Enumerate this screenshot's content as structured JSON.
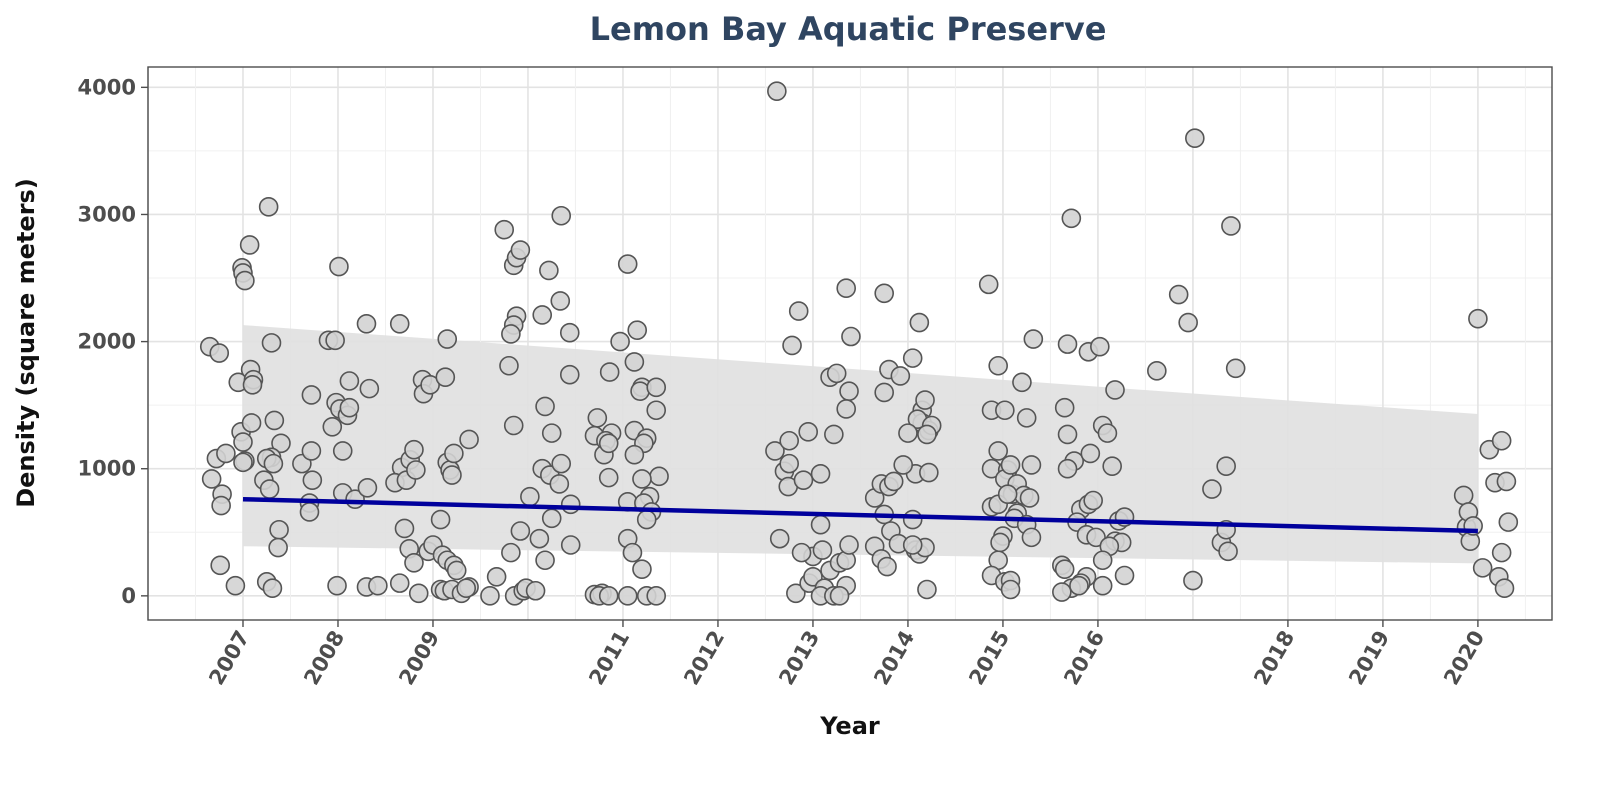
{
  "chart_data": {
    "type": "scatter",
    "title": "Lemon Bay Aquatic Preserve",
    "xlabel": "Year",
    "ylabel": "Density (square meters)",
    "xlim": [
      2006.0,
      2020.78
    ],
    "ylim": [
      -190,
      4160
    ],
    "x_ticks": [
      {
        "value": 2007,
        "label": "2007"
      },
      {
        "value": 2008,
        "label": "2008"
      },
      {
        "value": 2009,
        "label": "2009"
      },
      {
        "value": 2011,
        "label": "2011"
      },
      {
        "value": 2012,
        "label": "2012"
      },
      {
        "value": 2013,
        "label": "2013"
      },
      {
        "value": 2014,
        "label": "2014"
      },
      {
        "value": 2015,
        "label": "2015"
      },
      {
        "value": 2016,
        "label": "2016"
      },
      {
        "value": 2018,
        "label": "2018"
      },
      {
        "value": 2019,
        "label": "2019"
      },
      {
        "value": 2020,
        "label": "2020"
      }
    ],
    "y_ticks": [
      {
        "value": 0,
        "label": "0"
      },
      {
        "value": 1000,
        "label": "1000"
      },
      {
        "value": 2000,
        "label": "2000"
      },
      {
        "value": 3000,
        "label": "3000"
      },
      {
        "value": 4000,
        "label": "4000"
      }
    ],
    "grid": true,
    "colors": {
      "title": "#2f4561",
      "trend_line": "#00009c",
      "confidence_band": "#e0e0e0",
      "point_fill": "#d3d3d3",
      "point_stroke": "#555555"
    },
    "trend": {
      "x": [
        2007.0,
        2020.0
      ],
      "y": [
        760,
        510
      ],
      "ci_upper": [
        2130,
        1430
      ],
      "ci_lower": [
        390,
        255
      ]
    },
    "points": [
      [
        2006.65,
        1960
      ],
      [
        2006.75,
        1910
      ],
      [
        2006.72,
        1080
      ],
      [
        2006.82,
        1120
      ],
      [
        2006.67,
        920
      ],
      [
        2006.78,
        800
      ],
      [
        2006.77,
        710
      ],
      [
        2006.76,
        240
      ],
      [
        2006.95,
        1680
      ],
      [
        2006.98,
        1290
      ],
      [
        2007.0,
        1210
      ],
      [
        2007.02,
        1060
      ],
      [
        2007.0,
        1050
      ],
      [
        2006.92,
        80
      ],
      [
        2006.99,
        2580
      ],
      [
        2007.0,
        2540
      ],
      [
        2007.02,
        2480
      ],
      [
        2007.07,
        2760
      ],
      [
        2007.27,
        3060
      ],
      [
        2007.08,
        1780
      ],
      [
        2007.11,
        1700
      ],
      [
        2007.1,
        1660
      ],
      [
        2007.3,
        1990
      ],
      [
        2007.09,
        1360
      ],
      [
        2007.33,
        1380
      ],
      [
        2007.4,
        1200
      ],
      [
        2007.3,
        1090
      ],
      [
        2007.25,
        1080
      ],
      [
        2007.32,
        1040
      ],
      [
        2007.22,
        910
      ],
      [
        2007.28,
        840
      ],
      [
        2007.38,
        520
      ],
      [
        2007.37,
        380
      ],
      [
        2007.25,
        110
      ],
      [
        2007.31,
        60
      ],
      [
        2007.62,
        1040
      ],
      [
        2007.72,
        1580
      ],
      [
        2007.72,
        1140
      ],
      [
        2007.73,
        910
      ],
      [
        2007.7,
        730
      ],
      [
        2007.7,
        660
      ],
      [
        2007.9,
        2010
      ],
      [
        2007.97,
        2010
      ],
      [
        2008.01,
        2590
      ],
      [
        2007.98,
        1520
      ],
      [
        2008.02,
        1470
      ],
      [
        2008.1,
        1420
      ],
      [
        2008.12,
        1480
      ],
      [
        2008.12,
        1690
      ],
      [
        2007.94,
        1330
      ],
      [
        2008.05,
        1140
      ],
      [
        2008.05,
        810
      ],
      [
        2008.18,
        760
      ],
      [
        2007.99,
        80
      ],
      [
        2008.3,
        2140
      ],
      [
        2008.33,
        1630
      ],
      [
        2008.31,
        850
      ],
      [
        2008.3,
        70
      ],
      [
        2008.42,
        80
      ],
      [
        2008.65,
        2140
      ],
      [
        2008.67,
        1010
      ],
      [
        2008.6,
        890
      ],
      [
        2008.72,
        910
      ],
      [
        2008.76,
        1070
      ],
      [
        2008.8,
        1150
      ],
      [
        2008.82,
        990
      ],
      [
        2008.7,
        530
      ],
      [
        2008.75,
        370
      ],
      [
        2008.8,
        260
      ],
      [
        2008.65,
        100
      ],
      [
        2008.85,
        20
      ],
      [
        2008.89,
        1700
      ],
      [
        2008.9,
        1590
      ],
      [
        2008.97,
        1660
      ],
      [
        2009.15,
        2020
      ],
      [
        2009.13,
        1720
      ],
      [
        2009.15,
        1050
      ],
      [
        2009.18,
        990
      ],
      [
        2009.2,
        950
      ],
      [
        2009.22,
        1120
      ],
      [
        2009.38,
        1230
      ],
      [
        2008.95,
        350
      ],
      [
        2009.0,
        400
      ],
      [
        2009.08,
        600
      ],
      [
        2009.1,
        320
      ],
      [
        2009.15,
        280
      ],
      [
        2009.22,
        240
      ],
      [
        2009.25,
        200
      ],
      [
        2009.08,
        50
      ],
      [
        2009.12,
        40
      ],
      [
        2009.2,
        50
      ],
      [
        2009.3,
        20
      ],
      [
        2009.38,
        70
      ],
      [
        2009.35,
        60
      ],
      [
        2009.75,
        2880
      ],
      [
        2009.85,
        2600
      ],
      [
        2009.88,
        2660
      ],
      [
        2009.92,
        2720
      ],
      [
        2009.88,
        2200
      ],
      [
        2009.85,
        2130
      ],
      [
        2009.82,
        2060
      ],
      [
        2009.8,
        1810
      ],
      [
        2009.85,
        1340
      ],
      [
        2009.82,
        340
      ],
      [
        2009.67,
        150
      ],
      [
        2009.6,
        0
      ],
      [
        2009.86,
        0
      ],
      [
        2009.95,
        40
      ],
      [
        2009.98,
        60
      ],
      [
        2010.35,
        2990
      ],
      [
        2010.22,
        2560
      ],
      [
        2010.34,
        2320
      ],
      [
        2010.15,
        2210
      ],
      [
        2010.44,
        2070
      ],
      [
        2010.44,
        1740
      ],
      [
        2010.18,
        1490
      ],
      [
        2010.25,
        1280
      ],
      [
        2010.15,
        1000
      ],
      [
        2010.23,
        950
      ],
      [
        2010.35,
        1040
      ],
      [
        2010.33,
        880
      ],
      [
        2010.45,
        720
      ],
      [
        2010.25,
        610
      ],
      [
        2010.02,
        780
      ],
      [
        2009.92,
        510
      ],
      [
        2010.12,
        450
      ],
      [
        2010.18,
        280
      ],
      [
        2010.45,
        400
      ],
      [
        2010.08,
        40
      ],
      [
        2010.73,
        1400
      ],
      [
        2010.7,
        1260
      ],
      [
        2010.88,
        1280
      ],
      [
        2010.82,
        1220
      ],
      [
        2010.8,
        1110
      ],
      [
        2010.85,
        1200
      ],
      [
        2010.86,
        1760
      ],
      [
        2010.85,
        930
      ],
      [
        2010.97,
        2000
      ],
      [
        2010.7,
        10
      ],
      [
        2010.78,
        20
      ],
      [
        2010.75,
        0
      ],
      [
        2010.85,
        0
      ],
      [
        2011.05,
        2610
      ],
      [
        2011.15,
        2090
      ],
      [
        2011.12,
        1840
      ],
      [
        2011.2,
        1640
      ],
      [
        2011.18,
        1610
      ],
      [
        2011.35,
        1640
      ],
      [
        2011.35,
        1460
      ],
      [
        2011.12,
        1300
      ],
      [
        2011.25,
        1240
      ],
      [
        2011.22,
        1200
      ],
      [
        2011.12,
        1110
      ],
      [
        2011.38,
        940
      ],
      [
        2011.2,
        920
      ],
      [
        2011.28,
        780
      ],
      [
        2011.05,
        740
      ],
      [
        2011.22,
        730
      ],
      [
        2011.3,
        660
      ],
      [
        2011.25,
        600
      ],
      [
        2011.05,
        450
      ],
      [
        2011.1,
        340
      ],
      [
        2011.2,
        210
      ],
      [
        2011.05,
        0
      ],
      [
        2011.25,
        0
      ],
      [
        2011.35,
        0
      ],
      [
        2012.62,
        3970
      ],
      [
        2012.6,
        1140
      ],
      [
        2012.75,
        1220
      ],
      [
        2012.7,
        980
      ],
      [
        2012.75,
        1040
      ],
      [
        2012.74,
        860
      ],
      [
        2012.78,
        1970
      ],
      [
        2012.85,
        2240
      ],
      [
        2012.65,
        450
      ],
      [
        2012.82,
        20
      ],
      [
        2012.9,
        910
      ],
      [
        2013.08,
        960
      ],
      [
        2012.95,
        1290
      ],
      [
        2013.18,
        1720
      ],
      [
        2013.25,
        1750
      ],
      [
        2013.35,
        2420
      ],
      [
        2013.4,
        2040
      ],
      [
        2013.38,
        1610
      ],
      [
        2013.35,
        1470
      ],
      [
        2013.22,
        1270
      ],
      [
        2013.08,
        560
      ],
      [
        2013.0,
        310
      ],
      [
        2013.1,
        360
      ],
      [
        2012.88,
        340
      ],
      [
        2012.96,
        100
      ],
      [
        2013.0,
        150
      ],
      [
        2013.12,
        60
      ],
      [
        2013.18,
        200
      ],
      [
        2013.28,
        260
      ],
      [
        2013.35,
        280
      ],
      [
        2013.38,
        400
      ],
      [
        2013.35,
        80
      ],
      [
        2013.08,
        0
      ],
      [
        2013.22,
        0
      ],
      [
        2013.28,
        0
      ],
      [
        2013.75,
        2380
      ],
      [
        2013.75,
        1600
      ],
      [
        2013.8,
        1780
      ],
      [
        2013.65,
        770
      ],
      [
        2013.72,
        880
      ],
      [
        2013.8,
        860
      ],
      [
        2013.85,
        900
      ],
      [
        2013.75,
        640
      ],
      [
        2013.82,
        510
      ],
      [
        2013.65,
        390
      ],
      [
        2013.72,
        290
      ],
      [
        2013.78,
        230
      ],
      [
        2013.9,
        410
      ],
      [
        2013.92,
        1730
      ],
      [
        2014.05,
        1870
      ],
      [
        2014.12,
        2150
      ],
      [
        2014.15,
        1460
      ],
      [
        2014.18,
        1540
      ],
      [
        2014.15,
        1360
      ],
      [
        2014.22,
        1300
      ],
      [
        2014.1,
        1390
      ],
      [
        2014.0,
        1280
      ],
      [
        2014.25,
        1340
      ],
      [
        2014.2,
        1270
      ],
      [
        2014.08,
        960
      ],
      [
        2014.22,
        970
      ],
      [
        2013.95,
        1030
      ],
      [
        2014.05,
        600
      ],
      [
        2014.08,
        360
      ],
      [
        2014.12,
        330
      ],
      [
        2014.18,
        380
      ],
      [
        2014.05,
        400
      ],
      [
        2014.2,
        50
      ],
      [
        2014.85,
        2450
      ],
      [
        2014.95,
        1810
      ],
      [
        2014.88,
        1460
      ],
      [
        2015.02,
        1460
      ],
      [
        2014.88,
        1000
      ],
      [
        2014.95,
        1140
      ],
      [
        2015.05,
        990
      ],
      [
        2015.02,
        920
      ],
      [
        2015.08,
        1030
      ],
      [
        2015.1,
        800
      ],
      [
        2014.88,
        700
      ],
      [
        2014.95,
        720
      ],
      [
        2015.15,
        880
      ],
      [
        2015.2,
        1680
      ],
      [
        2015.25,
        1400
      ],
      [
        2015.32,
        2020
      ],
      [
        2015.3,
        1030
      ],
      [
        2015.22,
        790
      ],
      [
        2015.28,
        770
      ],
      [
        2015.15,
        650
      ],
      [
        2015.12,
        610
      ],
      [
        2015.05,
        800
      ],
      [
        2015.25,
        560
      ],
      [
        2015.3,
        460
      ],
      [
        2015.0,
        470
      ],
      [
        2014.97,
        420
      ],
      [
        2014.95,
        280
      ],
      [
        2014.88,
        160
      ],
      [
        2015.02,
        110
      ],
      [
        2015.08,
        120
      ],
      [
        2015.08,
        50
      ],
      [
        2015.65,
        1480
      ],
      [
        2015.68,
        1270
      ],
      [
        2015.72,
        2970
      ],
      [
        2015.68,
        1980
      ],
      [
        2015.75,
        1060
      ],
      [
        2015.68,
        1000
      ],
      [
        2015.9,
        1920
      ],
      [
        2016.02,
        1960
      ],
      [
        2016.05,
        1340
      ],
      [
        2016.1,
        1280
      ],
      [
        2016.18,
        1620
      ],
      [
        2016.15,
        1020
      ],
      [
        2015.92,
        1120
      ],
      [
        2015.82,
        680
      ],
      [
        2015.9,
        720
      ],
      [
        2015.95,
        750
      ],
      [
        2015.78,
        580
      ],
      [
        2015.88,
        480
      ],
      [
        2015.98,
        460
      ],
      [
        2016.18,
        430
      ],
      [
        2016.22,
        590
      ],
      [
        2016.28,
        620
      ],
      [
        2016.25,
        420
      ],
      [
        2016.12,
        390
      ],
      [
        2016.05,
        280
      ],
      [
        2015.62,
        240
      ],
      [
        2015.65,
        210
      ],
      [
        2015.88,
        150
      ],
      [
        2015.82,
        100
      ],
      [
        2015.72,
        60
      ],
      [
        2015.62,
        30
      ],
      [
        2015.8,
        80
      ],
      [
        2016.05,
        80
      ],
      [
        2016.28,
        160
      ],
      [
        2016.62,
        1770
      ],
      [
        2016.85,
        2370
      ],
      [
        2016.95,
        2150
      ],
      [
        2017.02,
        3600
      ],
      [
        2017.0,
        120
      ],
      [
        2017.2,
        840
      ],
      [
        2017.3,
        420
      ],
      [
        2017.35,
        1020
      ],
      [
        2017.35,
        520
      ],
      [
        2017.37,
        350
      ],
      [
        2017.4,
        2910
      ],
      [
        2017.45,
        1790
      ],
      [
        2019.85,
        790
      ],
      [
        2019.88,
        540
      ],
      [
        2019.9,
        660
      ],
      [
        2019.92,
        430
      ],
      [
        2019.95,
        550
      ],
      [
        2020.0,
        2180
      ],
      [
        2020.05,
        220
      ],
      [
        2020.12,
        1150
      ],
      [
        2020.18,
        890
      ],
      [
        2020.25,
        1220
      ],
      [
        2020.25,
        340
      ],
      [
        2020.22,
        150
      ],
      [
        2020.28,
        60
      ],
      [
        2020.3,
        900
      ],
      [
        2020.32,
        580
      ]
    ]
  }
}
